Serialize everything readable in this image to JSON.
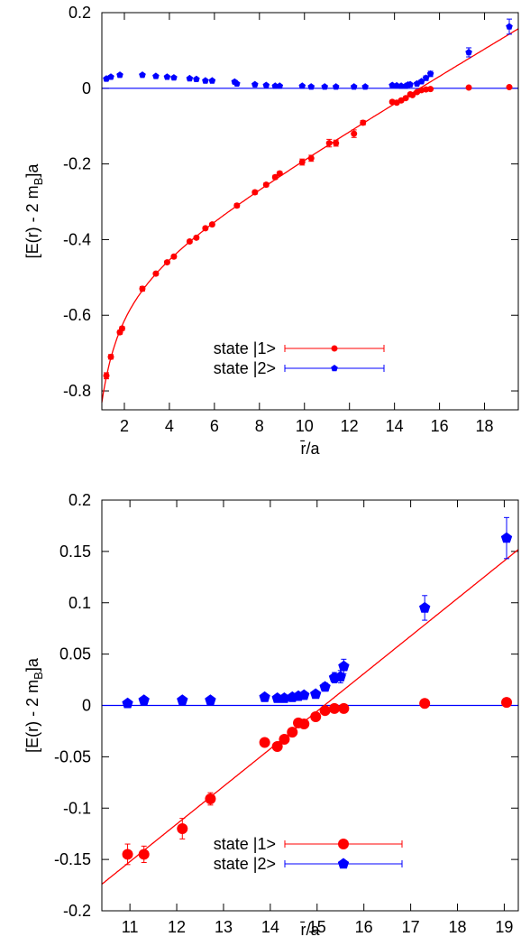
{
  "chart_data": [
    {
      "type": "scatter",
      "xlabel": "r̄/a",
      "ylabel": "[E(r) - 2 m_B]a",
      "ylabel_main": "[E(r) - 2 m",
      "ylabel_sub": "B",
      "ylabel_tail": "]a",
      "xlim": [
        1,
        19.5
      ],
      "ylim": [
        -0.85,
        0.2
      ],
      "xticks": [
        2,
        4,
        6,
        8,
        10,
        12,
        14,
        16,
        18
      ],
      "xtick_labels": [
        "2",
        "4",
        "6",
        "8",
        "10",
        "12",
        "14",
        "16",
        "18"
      ],
      "yticks": [
        -0.8,
        -0.6,
        -0.4,
        -0.2,
        0,
        0.2
      ],
      "ytick_labels": [
        "-0.8",
        "-0.6",
        "-0.4",
        "-0.2",
        "0",
        "0.2"
      ],
      "legend_position": "bottom-right",
      "colors": {
        "state1": "#ff0000",
        "state2": "#0000ff"
      },
      "series": [
        {
          "name": "state |1>",
          "marker": "circle",
          "x": [
            1.2,
            1.4,
            1.8,
            1.9,
            2.8,
            3.4,
            3.9,
            4.2,
            4.9,
            5.2,
            5.6,
            5.9,
            7.0,
            7.8,
            8.3,
            8.7,
            8.9,
            9.9,
            10.3,
            11.1,
            11.4,
            12.2,
            12.6,
            13.9,
            14.1,
            14.3,
            14.5,
            14.7,
            14.8,
            15.0,
            15.2,
            15.4,
            15.6,
            17.3,
            19.1
          ],
          "y": [
            -0.76,
            -0.71,
            -0.645,
            -0.635,
            -0.53,
            -0.49,
            -0.46,
            -0.445,
            -0.405,
            -0.395,
            -0.37,
            -0.36,
            -0.31,
            -0.275,
            -0.255,
            -0.235,
            -0.225,
            -0.195,
            -0.185,
            -0.145,
            -0.145,
            -0.12,
            -0.091,
            -0.036,
            -0.038,
            -0.032,
            -0.026,
            -0.016,
            -0.018,
            -0.01,
            -0.005,
            -0.003,
            -0.002,
            0.002,
            0.003
          ],
          "yerr": [
            0.008,
            0.006,
            0.005,
            0.005,
            0.006,
            0.004,
            0.004,
            0.004,
            0.004,
            0.004,
            0.004,
            0.004,
            0.005,
            0.005,
            0.005,
            0.005,
            0.005,
            0.008,
            0.008,
            0.01,
            0.008,
            0.01,
            0.006,
            0.004,
            0.004,
            0.004,
            0.004,
            0.003,
            0.003,
            0.003,
            0.003,
            0.002,
            0.002,
            0.002,
            0.002
          ]
        },
        {
          "name": "state |2>",
          "marker": "pentagon",
          "x": [
            1.2,
            1.4,
            1.8,
            2.8,
            3.4,
            3.9,
            4.2,
            4.9,
            5.2,
            5.6,
            5.9,
            6.9,
            7.0,
            7.8,
            8.3,
            8.7,
            8.9,
            9.9,
            10.3,
            10.9,
            11.4,
            12.2,
            12.7,
            13.9,
            14.1,
            14.3,
            14.5,
            14.6,
            14.7,
            15.0,
            15.2,
            15.4,
            15.6,
            17.3,
            19.1
          ],
          "y": [
            0.025,
            0.03,
            0.035,
            0.035,
            0.032,
            0.03,
            0.028,
            0.026,
            0.024,
            0.02,
            0.02,
            0.017,
            0.012,
            0.01,
            0.008,
            0.006,
            0.006,
            0.006,
            0.004,
            0.004,
            0.004,
            0.004,
            0.004,
            0.008,
            0.007,
            0.006,
            0.006,
            0.009,
            0.01,
            0.012,
            0.018,
            0.027,
            0.038,
            0.095,
            0.163
          ],
          "yerr": [
            0.004,
            0.004,
            0.004,
            0.003,
            0.003,
            0.003,
            0.003,
            0.003,
            0.003,
            0.003,
            0.003,
            0.004,
            0.003,
            0.003,
            0.003,
            0.003,
            0.003,
            0.003,
            0.003,
            0.003,
            0.003,
            0.003,
            0.003,
            0.002,
            0.002,
            0.002,
            0.002,
            0.002,
            0.002,
            0.003,
            0.004,
            0.006,
            0.007,
            0.012,
            0.02
          ]
        }
      ]
    },
    {
      "type": "scatter",
      "xlabel": "r̄/a",
      "ylabel": "[E(r) - 2 m_B]a",
      "ylabel_main": "[E(r) - 2 m",
      "ylabel_sub": "B",
      "ylabel_tail": "]a",
      "xlim": [
        10.4,
        19.3
      ],
      "ylim": [
        -0.2,
        0.2
      ],
      "xticks": [
        11,
        12,
        13,
        14,
        15,
        16,
        17,
        18,
        19
      ],
      "xtick_labels": [
        "11",
        "12",
        "13",
        "14",
        "15",
        "16",
        "17",
        "18",
        "19"
      ],
      "yticks": [
        -0.2,
        -0.15,
        -0.1,
        -0.05,
        0,
        0.05,
        0.1,
        0.15,
        0.2
      ],
      "ytick_labels": [
        "-0.2",
        "-0.15",
        "-0.1",
        "-0.05",
        "0",
        "0.05",
        "0.1",
        "0.15",
        "0.2"
      ],
      "legend_position": "bottom-right",
      "colors": {
        "state1": "#ff0000",
        "state2": "#0000ff"
      },
      "series": [
        {
          "name": "state |1>",
          "marker": "circle",
          "x": [
            10.95,
            11.3,
            12.12,
            12.72,
            13.88,
            14.15,
            14.3,
            14.47,
            14.6,
            14.72,
            14.97,
            15.17,
            15.37,
            15.57,
            17.3,
            19.05
          ],
          "y": [
            -0.145,
            -0.145,
            -0.12,
            -0.091,
            -0.036,
            -0.04,
            -0.033,
            -0.026,
            -0.017,
            -0.018,
            -0.011,
            -0.005,
            -0.003,
            -0.003,
            0.002,
            0.003
          ],
          "yerr": [
            0.01,
            0.008,
            0.01,
            0.006,
            0.004,
            0.004,
            0.004,
            0.004,
            0.003,
            0.003,
            0.003,
            0.003,
            0.002,
            0.002,
            0.002,
            0.002
          ]
        },
        {
          "name": "state |2>",
          "marker": "pentagon",
          "x": [
            10.95,
            11.3,
            12.12,
            12.72,
            13.88,
            14.15,
            14.3,
            14.47,
            14.6,
            14.72,
            14.97,
            15.17,
            15.37,
            15.5,
            15.57,
            17.3,
            19.05
          ],
          "y": [
            0.002,
            0.005,
            0.005,
            0.005,
            0.008,
            0.007,
            0.007,
            0.008,
            0.009,
            0.01,
            0.011,
            0.018,
            0.027,
            0.028,
            0.038,
            0.095,
            0.163
          ],
          "yerr": [
            0.002,
            0.002,
            0.002,
            0.002,
            0.002,
            0.002,
            0.002,
            0.002,
            0.002,
            0.002,
            0.003,
            0.004,
            0.005,
            0.006,
            0.007,
            0.012,
            0.02
          ]
        }
      ]
    }
  ]
}
